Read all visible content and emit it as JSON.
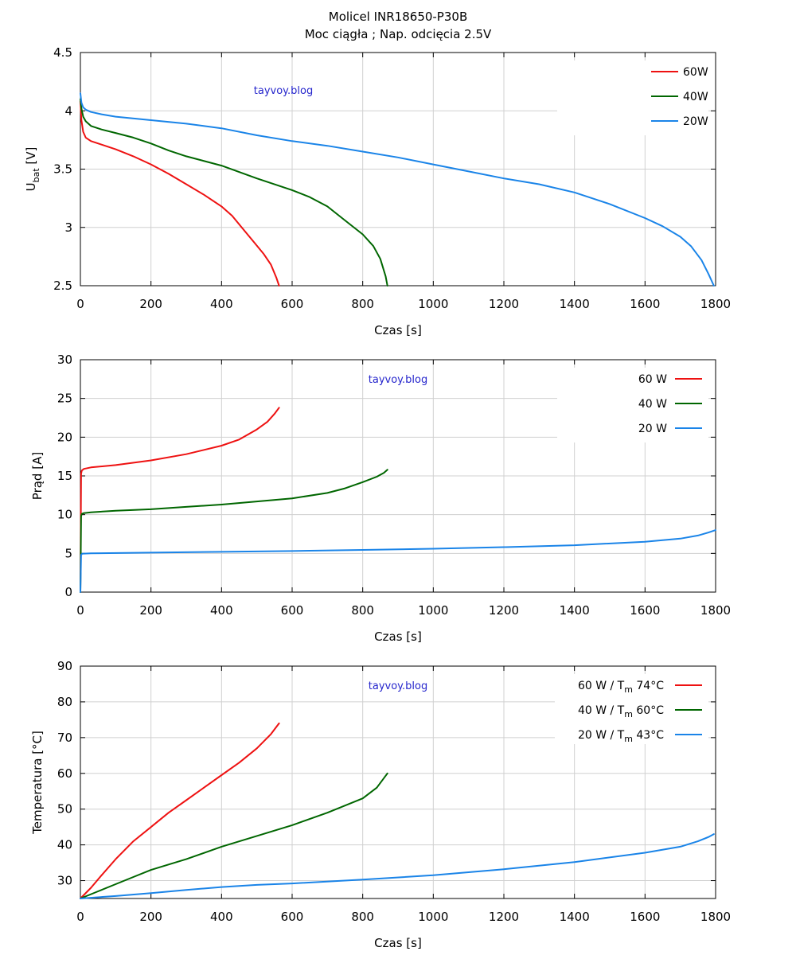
{
  "page": {
    "title": "Molicel INR18650-P30B",
    "subtitle": "Moc ciągła ; Nap. odcięcia 2.5V"
  },
  "chart_data": [
    {
      "type": "line",
      "id": "voltage",
      "xlabel": "Czas [s]",
      "ylabel": "U",
      "ylabel_sub": "bat",
      "ylabel_unit": " [V]",
      "xlim": [
        0,
        1800
      ],
      "ylim": [
        2.5,
        4.5
      ],
      "xticks": [
        0,
        200,
        400,
        600,
        800,
        1000,
        1200,
        1400,
        1600,
        1800
      ],
      "yticks": [
        2.5,
        3,
        3.5,
        4,
        4.5
      ],
      "ytick_labels": [
        "2.5",
        "3",
        "3.5",
        "4",
        "4.5"
      ],
      "grid": true,
      "legend_position": "top-right",
      "watermark": "tayvoy.blog",
      "series": [
        {
          "name": "60W",
          "color": "#ee1111",
          "x": [
            0,
            3,
            8,
            15,
            30,
            60,
            100,
            150,
            200,
            250,
            300,
            350,
            400,
            430,
            460,
            490,
            520,
            540,
            555,
            563
          ],
          "y": [
            4.08,
            3.92,
            3.82,
            3.77,
            3.74,
            3.71,
            3.67,
            3.61,
            3.54,
            3.46,
            3.37,
            3.28,
            3.18,
            3.1,
            2.99,
            2.88,
            2.77,
            2.68,
            2.57,
            2.5
          ]
        },
        {
          "name": "40W",
          "color": "#006600",
          "x": [
            0,
            3,
            8,
            15,
            30,
            60,
            100,
            150,
            200,
            250,
            300,
            400,
            500,
            600,
            650,
            700,
            750,
            800,
            830,
            850,
            865,
            870
          ],
          "y": [
            4.1,
            4.02,
            3.95,
            3.91,
            3.87,
            3.84,
            3.81,
            3.77,
            3.72,
            3.66,
            3.61,
            3.53,
            3.42,
            3.32,
            3.26,
            3.18,
            3.06,
            2.94,
            2.84,
            2.73,
            2.58,
            2.5
          ]
        },
        {
          "name": "20W",
          "color": "#1a84e8",
          "x": [
            0,
            3,
            8,
            15,
            30,
            60,
            100,
            200,
            300,
            400,
            500,
            600,
            700,
            800,
            900,
            1000,
            1100,
            1200,
            1300,
            1400,
            1500,
            1600,
            1650,
            1700,
            1730,
            1760,
            1780,
            1795
          ],
          "y": [
            4.15,
            4.07,
            4.03,
            4.01,
            3.99,
            3.97,
            3.95,
            3.92,
            3.89,
            3.85,
            3.79,
            3.74,
            3.7,
            3.65,
            3.6,
            3.54,
            3.48,
            3.42,
            3.37,
            3.3,
            3.2,
            3.08,
            3.01,
            2.92,
            2.84,
            2.72,
            2.6,
            2.5
          ]
        }
      ]
    },
    {
      "type": "line",
      "id": "current",
      "xlabel": "Czas [s]",
      "ylabel": "Prąd [A]",
      "xlim": [
        0,
        1800
      ],
      "ylim": [
        0,
        30
      ],
      "xticks": [
        0,
        200,
        400,
        600,
        800,
        1000,
        1200,
        1400,
        1600,
        1800
      ],
      "yticks": [
        0,
        5,
        10,
        15,
        20,
        25,
        30
      ],
      "ytick_labels": [
        "0",
        "5",
        "10",
        "15",
        "20",
        "25",
        "30"
      ],
      "grid": true,
      "legend_position": "top-right",
      "watermark": "tayvoy.blog",
      "series": [
        {
          "name": "60 W",
          "color": "#ee1111",
          "x": [
            0,
            2,
            4,
            10,
            30,
            100,
            200,
            300,
            400,
            450,
            500,
            530,
            550,
            563
          ],
          "y": [
            0,
            15.3,
            15.7,
            15.9,
            16.1,
            16.4,
            17.0,
            17.8,
            18.9,
            19.7,
            21.0,
            22.0,
            23.0,
            23.8
          ]
        },
        {
          "name": "40 W",
          "color": "#006600",
          "x": [
            0,
            2,
            4,
            10,
            30,
            100,
            200,
            300,
            400,
            500,
            600,
            700,
            750,
            800,
            840,
            860,
            870
          ],
          "y": [
            0,
            9.8,
            10.1,
            10.2,
            10.3,
            10.5,
            10.7,
            11.0,
            11.3,
            11.7,
            12.1,
            12.8,
            13.4,
            14.2,
            14.9,
            15.4,
            15.8
          ]
        },
        {
          "name": "20 W",
          "color": "#1a84e8",
          "x": [
            0,
            2,
            5,
            30,
            200,
            400,
            600,
            800,
            1000,
            1200,
            1400,
            1600,
            1700,
            1750,
            1780,
            1800
          ],
          "y": [
            0,
            4.8,
            4.95,
            5.0,
            5.1,
            5.2,
            5.3,
            5.45,
            5.6,
            5.8,
            6.05,
            6.5,
            6.9,
            7.3,
            7.7,
            8.0
          ]
        }
      ]
    },
    {
      "type": "line",
      "id": "temperature",
      "xlabel": "Czas [s]",
      "ylabel": "Temperatura [°C]",
      "xlim": [
        0,
        1800
      ],
      "ylim": [
        25,
        90
      ],
      "xticks": [
        0,
        200,
        400,
        600,
        800,
        1000,
        1200,
        1400,
        1600,
        1800
      ],
      "yticks": [
        30,
        40,
        50,
        60,
        70,
        80,
        90
      ],
      "ytick_labels": [
        "30",
        "40",
        "50",
        "60",
        "70",
        "80",
        "90"
      ],
      "grid": true,
      "legend_position": "top-right",
      "watermark": "tayvoy.blog",
      "series": [
        {
          "name": "60 W  / T",
          "name_sub": "m",
          "name_suffix": " 74°C",
          "color": "#ee1111",
          "x": [
            0,
            30,
            60,
            100,
            150,
            200,
            250,
            300,
            350,
            400,
            450,
            500,
            540,
            563
          ],
          "y": [
            25,
            28,
            31.5,
            36,
            41,
            45,
            49,
            52.5,
            56,
            59.5,
            63,
            67,
            71,
            74
          ]
        },
        {
          "name": "40 W  / T",
          "name_sub": "m",
          "name_suffix": " 60°C",
          "color": "#006600",
          "x": [
            0,
            50,
            100,
            150,
            200,
            250,
            300,
            400,
            500,
            600,
            700,
            800,
            840,
            870
          ],
          "y": [
            25,
            27,
            29,
            31,
            33,
            34.5,
            36,
            39.5,
            42.5,
            45.5,
            49,
            53,
            56,
            60
          ]
        },
        {
          "name": "20 W  / T",
          "name_sub": "m",
          "name_suffix": " 43°C",
          "color": "#1a84e8",
          "x": [
            0,
            100,
            200,
            300,
            400,
            500,
            600,
            800,
            1000,
            1200,
            1400,
            1600,
            1700,
            1750,
            1780,
            1795
          ],
          "y": [
            25,
            25.7,
            26.5,
            27.4,
            28.2,
            28.8,
            29.2,
            30.3,
            31.5,
            33.2,
            35.2,
            37.8,
            39.5,
            41,
            42.2,
            43
          ]
        }
      ]
    }
  ]
}
